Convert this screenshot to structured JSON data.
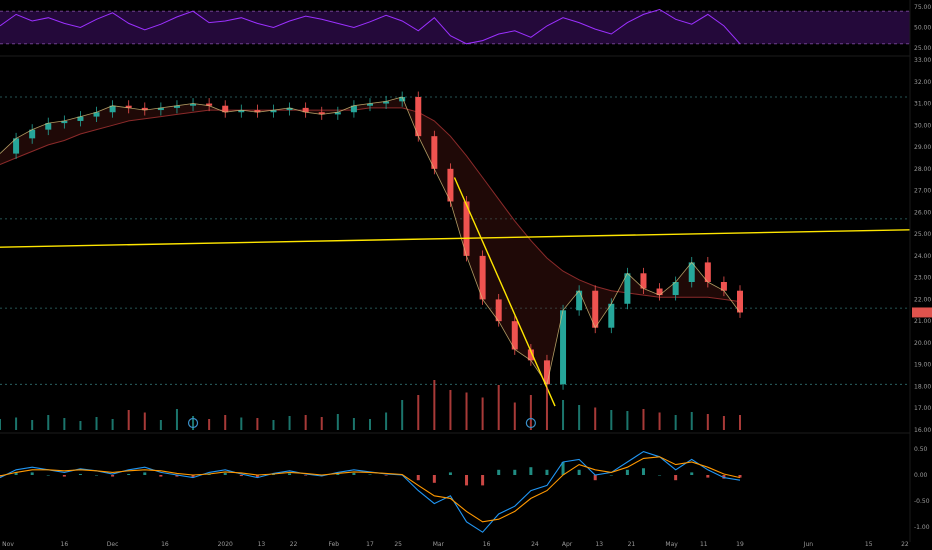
{
  "colors": {
    "background": "#000000",
    "rsi_line": "#9b30ff",
    "rsi_band_fill": "#2a0a44",
    "rsi_band_border": "#7a4a9a",
    "trendline": "#ffe600",
    "candle_up": "#26a69a",
    "candle_down": "#ef5350",
    "price_tag": "#e0534d",
    "macd_line": "#2196f3",
    "signal_line": "#ff9800",
    "hist_up": "#26a69a",
    "hist_down": "#ef5350",
    "dotted_level": "#2f6f6f",
    "axis_text": "#9a9a9a"
  },
  "chart_data": [
    {
      "type": "line",
      "panel": "rsi",
      "ylim": [
        20,
        80
      ],
      "ticks": [
        "75.00",
        "50.00",
        "25.00"
      ],
      "band": [
        30,
        70
      ],
      "x": [
        0,
        4,
        8,
        12,
        16,
        20,
        24,
        28,
        32,
        36,
        40,
        44,
        48,
        52,
        56,
        60,
        64,
        68,
        72,
        76,
        80,
        84,
        88,
        92,
        96,
        100,
        104,
        108,
        112,
        116,
        120,
        124,
        128,
        132,
        136,
        140,
        144,
        148,
        152,
        156,
        160,
        164,
        168,
        172,
        176,
        180,
        184
      ],
      "series": [
        {
          "values": [
            52,
            66,
            58,
            62,
            55,
            50,
            60,
            68,
            55,
            47,
            54,
            63,
            70,
            56,
            58,
            62,
            55,
            50,
            58,
            64,
            60,
            55,
            50,
            57,
            65,
            58,
            46,
            62,
            40,
            30,
            34,
            42,
            46,
            38,
            52,
            62,
            56,
            48,
            42,
            56,
            66,
            72,
            60,
            54,
            66,
            52,
            30
          ]
        }
      ]
    },
    {
      "type": "line",
      "panel": "price",
      "ylim": [
        16,
        33
      ],
      "ticks": [
        "33.00",
        "32.00",
        "31.00",
        "30.00",
        "29.00",
        "28.00",
        "27.00",
        "26.00",
        "25.00",
        "24.00",
        "23.00",
        "22.00",
        "21.00",
        "20.00",
        "19.00",
        "18.00",
        "17.00",
        "16.00"
      ],
      "dotted_levels": [
        31.3,
        25.7,
        21.6,
        18.1
      ],
      "current_price": 21.4,
      "x": [
        0,
        4,
        8,
        12,
        16,
        20,
        24,
        28,
        32,
        36,
        40,
        44,
        48,
        52,
        56,
        60,
        64,
        68,
        72,
        76,
        80,
        84,
        88,
        92,
        96,
        100,
        104,
        108,
        112,
        116,
        120,
        124,
        128,
        132,
        136,
        140,
        144,
        148,
        152,
        156,
        160,
        164,
        168,
        172,
        176,
        180,
        184
      ],
      "series": [
        {
          "values": [
            28.7,
            29.4,
            29.8,
            30.1,
            30.2,
            30.4,
            30.6,
            30.9,
            30.8,
            30.7,
            30.8,
            30.9,
            31.0,
            30.9,
            30.6,
            30.7,
            30.6,
            30.7,
            30.8,
            30.6,
            30.5,
            30.6,
            30.9,
            31.0,
            31.1,
            31.3,
            29.5,
            28.0,
            26.5,
            24.0,
            22.0,
            21.0,
            19.7,
            19.2,
            18.1,
            21.5,
            22.4,
            20.7,
            21.8,
            23.2,
            22.5,
            22.2,
            22.8,
            23.7,
            22.8,
            22.4,
            21.4
          ]
        },
        {
          "name": "slow-ma",
          "values": [
            28.2,
            28.5,
            28.8,
            29.1,
            29.3,
            29.6,
            29.8,
            30.0,
            30.2,
            30.3,
            30.4,
            30.5,
            30.6,
            30.7,
            30.7,
            30.7,
            30.7,
            30.7,
            30.7,
            30.7,
            30.7,
            30.7,
            30.7,
            30.8,
            30.8,
            30.8,
            30.6,
            30.2,
            29.5,
            28.6,
            27.6,
            26.6,
            25.6,
            24.7,
            23.9,
            23.3,
            22.9,
            22.6,
            22.4,
            22.3,
            22.2,
            22.1,
            22.1,
            22.1,
            22.1,
            22.0,
            21.9
          ]
        }
      ],
      "trendlines": [
        {
          "from": [
            0,
            24.4
          ],
          "to": [
            228,
            25.2
          ]
        },
        {
          "from": [
            113,
            27.6
          ],
          "to": [
            138,
            17.1
          ]
        }
      ]
    },
    {
      "type": "bar",
      "panel": "volume",
      "x": [
        0,
        4,
        8,
        12,
        16,
        20,
        24,
        28,
        32,
        36,
        40,
        44,
        48,
        52,
        56,
        60,
        64,
        68,
        72,
        76,
        80,
        84,
        88,
        92,
        96,
        100,
        104,
        108,
        112,
        116,
        120,
        124,
        128,
        132,
        136,
        140,
        144,
        148,
        152,
        156,
        160,
        164,
        168,
        172,
        176,
        180,
        184
      ],
      "values": [
        22,
        25,
        20,
        30,
        24,
        18,
        26,
        22,
        40,
        35,
        20,
        42,
        28,
        22,
        30,
        25,
        24,
        20,
        28,
        30,
        26,
        32,
        24,
        22,
        35,
        60,
        70,
        100,
        80,
        75,
        65,
        90,
        55,
        70,
        85,
        60,
        50,
        45,
        40,
        38,
        42,
        35,
        30,
        36,
        32,
        28,
        30
      ],
      "markers": [
        48,
        132
      ]
    },
    {
      "type": "line",
      "panel": "macd",
      "ylim": [
        -1.25,
        0.75
      ],
      "ticks": [
        "0.50",
        "0.00",
        "-0.50",
        "-1.00"
      ],
      "x": [
        0,
        4,
        8,
        12,
        16,
        20,
        24,
        28,
        32,
        36,
        40,
        44,
        48,
        52,
        56,
        60,
        64,
        68,
        72,
        76,
        80,
        84,
        88,
        92,
        96,
        100,
        104,
        108,
        112,
        116,
        120,
        124,
        128,
        132,
        136,
        140,
        144,
        148,
        152,
        156,
        160,
        164,
        168,
        172,
        176,
        180,
        184
      ],
      "series": [
        {
          "name": "macd",
          "values": [
            -0.05,
            0.1,
            0.15,
            0.1,
            0.05,
            0.12,
            0.08,
            0.02,
            0.1,
            0.15,
            0.05,
            0.0,
            -0.05,
            0.05,
            0.1,
            0.02,
            -0.05,
            0.03,
            0.08,
            0.02,
            -0.02,
            0.05,
            0.1,
            0.06,
            0.02,
            0.0,
            -0.3,
            -0.55,
            -0.4,
            -0.9,
            -1.1,
            -0.75,
            -0.6,
            -0.3,
            -0.2,
            0.25,
            0.3,
            0.0,
            0.05,
            0.25,
            0.45,
            0.35,
            0.1,
            0.3,
            0.1,
            -0.05,
            -0.1
          ]
        },
        {
          "name": "signal",
          "values": [
            -0.02,
            0.05,
            0.1,
            0.1,
            0.08,
            0.1,
            0.08,
            0.05,
            0.08,
            0.1,
            0.08,
            0.03,
            0.0,
            0.02,
            0.06,
            0.04,
            0.0,
            0.02,
            0.05,
            0.03,
            0.0,
            0.03,
            0.06,
            0.05,
            0.03,
            0.01,
            -0.2,
            -0.4,
            -0.45,
            -0.7,
            -0.9,
            -0.85,
            -0.7,
            -0.45,
            -0.3,
            0.0,
            0.2,
            0.1,
            0.05,
            0.15,
            0.32,
            0.35,
            0.2,
            0.25,
            0.15,
            0.02,
            -0.05
          ]
        }
      ]
    }
  ],
  "x_axis": {
    "ticks": [
      {
        "i": 2,
        "label": "Nov"
      },
      {
        "i": 16,
        "label": "16"
      },
      {
        "i": 28,
        "label": "Dec"
      },
      {
        "i": 41,
        "label": "16"
      },
      {
        "i": 56,
        "label": "2020"
      },
      {
        "i": 65,
        "label": "13"
      },
      {
        "i": 73,
        "label": "22"
      },
      {
        "i": 83,
        "label": "Feb"
      },
      {
        "i": 92,
        "label": "17"
      },
      {
        "i": 99,
        "label": "25"
      },
      {
        "i": 109,
        "label": "Mar"
      },
      {
        "i": 121,
        "label": "16"
      },
      {
        "i": 133,
        "label": "24"
      },
      {
        "i": 141,
        "label": "Apr"
      },
      {
        "i": 149,
        "label": "13"
      },
      {
        "i": 157,
        "label": "21"
      },
      {
        "i": 167,
        "label": "May"
      },
      {
        "i": 175,
        "label": "11"
      },
      {
        "i": 184,
        "label": "19"
      },
      {
        "i": 201,
        "label": "Jun"
      },
      {
        "i": 216,
        "label": "15"
      },
      {
        "i": 225,
        "label": "22"
      }
    ]
  }
}
